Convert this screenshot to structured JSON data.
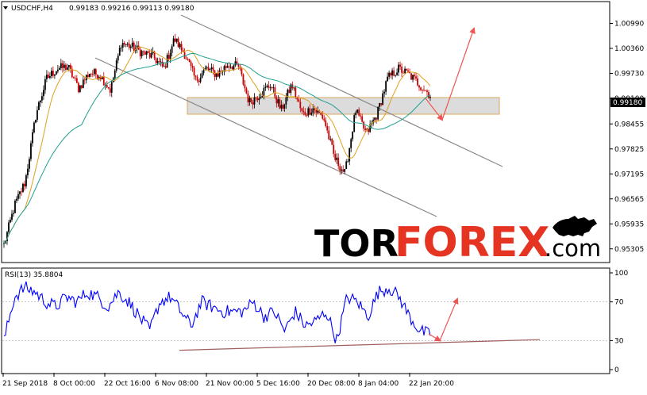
{
  "chart_data": [
    {
      "type": "candlestick",
      "symbol": "USDCHF,H4",
      "ohlc_header": "0.99183 0.99216 0.99113 0.99180",
      "last_price": "0.99180",
      "y_ticks": [
        "1.00990",
        "1.00360",
        "0.99730",
        "0.99100",
        "0.98455",
        "0.97825",
        "0.97195",
        "0.96565",
        "0.95935",
        "0.95305"
      ],
      "ylim": [
        0.9498,
        1.015
      ],
      "x_ticks": [
        "21 Sep 2018",
        "8 Oct 00:00",
        "22 Oct 16:00",
        "6 Nov 08:00",
        "21 Nov 00:00",
        "5 Dec 16:00",
        "20 Dec 08:00",
        "8 Jan 04:00",
        "22 Jan 20:00"
      ],
      "series_anchor_values": [
        0.954,
        0.964,
        0.97,
        0.987,
        0.996,
        0.9985,
        0.999,
        0.9935,
        0.9975,
        0.997,
        0.993,
        1.005,
        1.004,
        1.0025,
        1.0015,
        0.9985,
        1.006,
        1.002,
        0.9955,
        0.9985,
        0.997,
        0.9995,
        0.999,
        0.99,
        0.992,
        0.9945,
        0.988,
        0.9945,
        0.987,
        0.9885,
        0.986,
        0.976,
        0.972,
        0.988,
        0.982,
        0.987,
        0.996,
        0.9985,
        0.997,
        0.9945,
        0.9918
      ],
      "resistance_zone": [
        0.987,
        0.9912
      ],
      "channel_upper": [
        [
          0.95,
          1.015
        ],
        [
          0.978,
          0.979
        ]
      ],
      "channel_lower": [
        [
          0.925,
          1.004
        ],
        [
          0.959,
          0.966
        ]
      ],
      "forecast_arrow": [
        [
          0.9918,
          0.9895
        ],
        [
          0.9895,
          1.01
        ]
      ]
    },
    {
      "type": "line",
      "indicator": "RSI(13) 35.8804",
      "y_ticks": [
        "100",
        "70",
        "30",
        "0"
      ],
      "ylim": [
        0,
        100
      ],
      "anchor_values": [
        30,
        75,
        85,
        80,
        70,
        65,
        75,
        70,
        80,
        75,
        65,
        80,
        70,
        55,
        40,
        70,
        75,
        60,
        45,
        70,
        65,
        60,
        60,
        60,
        70,
        55,
        60,
        40,
        60,
        45,
        50,
        60,
        30,
        75,
        70,
        55,
        80,
        85,
        75,
        55,
        40,
        36
      ],
      "trendline": [
        [
          0,
          20
        ],
        [
          1,
          33
        ]
      ],
      "forecast_arrow": [
        [
          36,
          30
        ],
        [
          30,
          72
        ]
      ]
    }
  ],
  "watermark": {
    "part1": "TOR",
    "part2": "FOREX",
    "part3": ".com"
  },
  "colors": {
    "background": "#ffffff",
    "candle_up": "#000000",
    "candle_down": "#cc0000",
    "ma_fast": "#e0a020",
    "ma_slow": "#20a090",
    "rsi_line": "#0000ff",
    "zone_fill": "#d9d9d9",
    "zone_border": "#d4a04a",
    "channel": "#888888",
    "forecast_arrow": "#ee5555",
    "rsi_trendline": "#a06060",
    "watermark_dark": "#000000",
    "watermark_accent": "#e53522",
    "price_box_bg": "#000000",
    "price_box_text": "#ffffff"
  }
}
